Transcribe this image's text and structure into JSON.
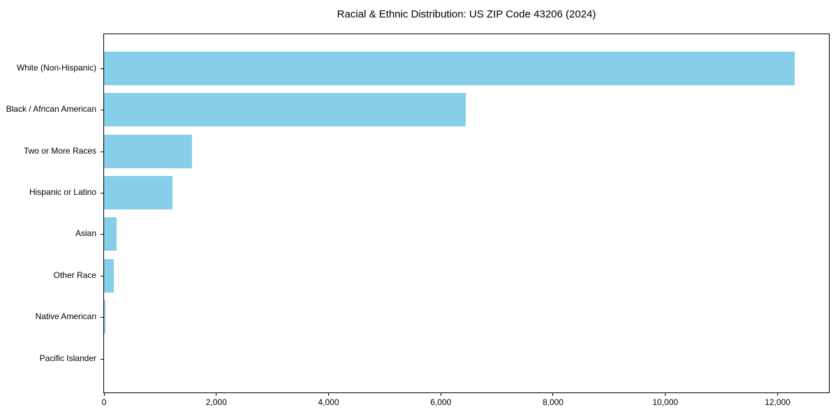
{
  "chart_data": {
    "type": "bar",
    "orientation": "horizontal",
    "title": "Racial & Ethnic Distribution: US ZIP Code 43206 (2024)",
    "categories": [
      "White (Non-Hispanic)",
      "Black / African American",
      "Two or More Races",
      "Hispanic or Latino",
      "Asian",
      "Other Race",
      "Native American",
      "Pacific Islander"
    ],
    "values": [
      12300,
      6450,
      1570,
      1220,
      230,
      180,
      30,
      0
    ],
    "xlabel": "",
    "ylabel": "",
    "xlim": [
      0,
      12915
    ],
    "x_ticks": [
      0,
      2000,
      4000,
      6000,
      8000,
      10000,
      12000
    ],
    "x_tick_labels": [
      "0",
      "2,000",
      "4,000",
      "6,000",
      "8,000",
      "10,000",
      "12,000"
    ],
    "bar_color": "#87CEEB",
    "text_color": "#000000",
    "spine_color": "#000000",
    "grid": false,
    "legend": null
  }
}
